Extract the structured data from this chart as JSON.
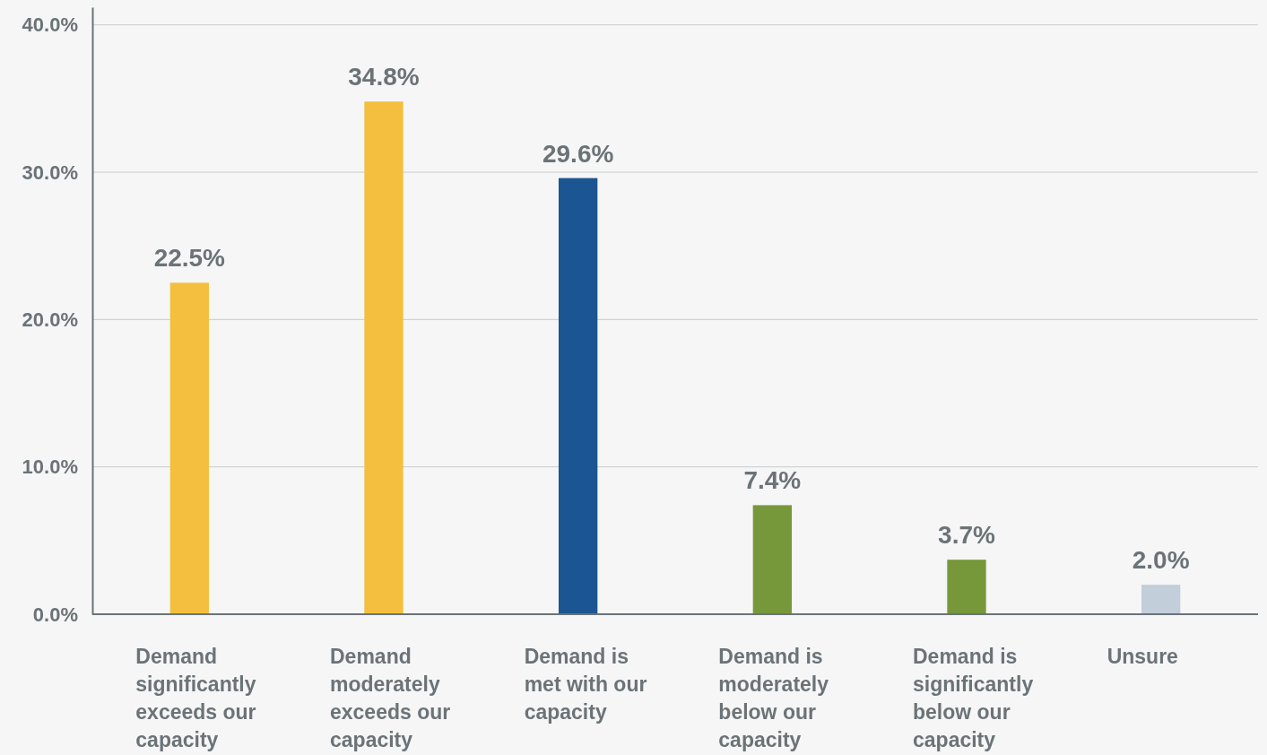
{
  "chart_data": {
    "type": "bar",
    "categories": [
      "Demand significantly exceeds our capacity",
      "Demand moderately exceeds our capacity",
      "Demand is met with our capacity",
      "Demand is moderately below our capacity",
      "Demand is significantly below our capacity",
      "Unsure"
    ],
    "values": [
      22.5,
      34.8,
      29.6,
      7.4,
      3.7,
      2.0
    ],
    "colors": [
      "#f4bf3f",
      "#f4bf3f",
      "#1b5592",
      "#76983a",
      "#76983a",
      "#c3cedb"
    ],
    "value_labels": [
      "22.5%",
      "34.8%",
      "29.6%",
      "7.4%",
      "3.7%",
      "2.0%"
    ],
    "ylim": [
      0,
      41.2
    ],
    "yticks": [
      {
        "value": 0,
        "label": "0.0%"
      },
      {
        "value": 10,
        "label": "10.0%"
      },
      {
        "value": 20,
        "label": "20.0%"
      },
      {
        "value": 30,
        "label": "30.0%"
      },
      {
        "value": 40,
        "label": "40.0%"
      }
    ],
    "grid": "y"
  }
}
